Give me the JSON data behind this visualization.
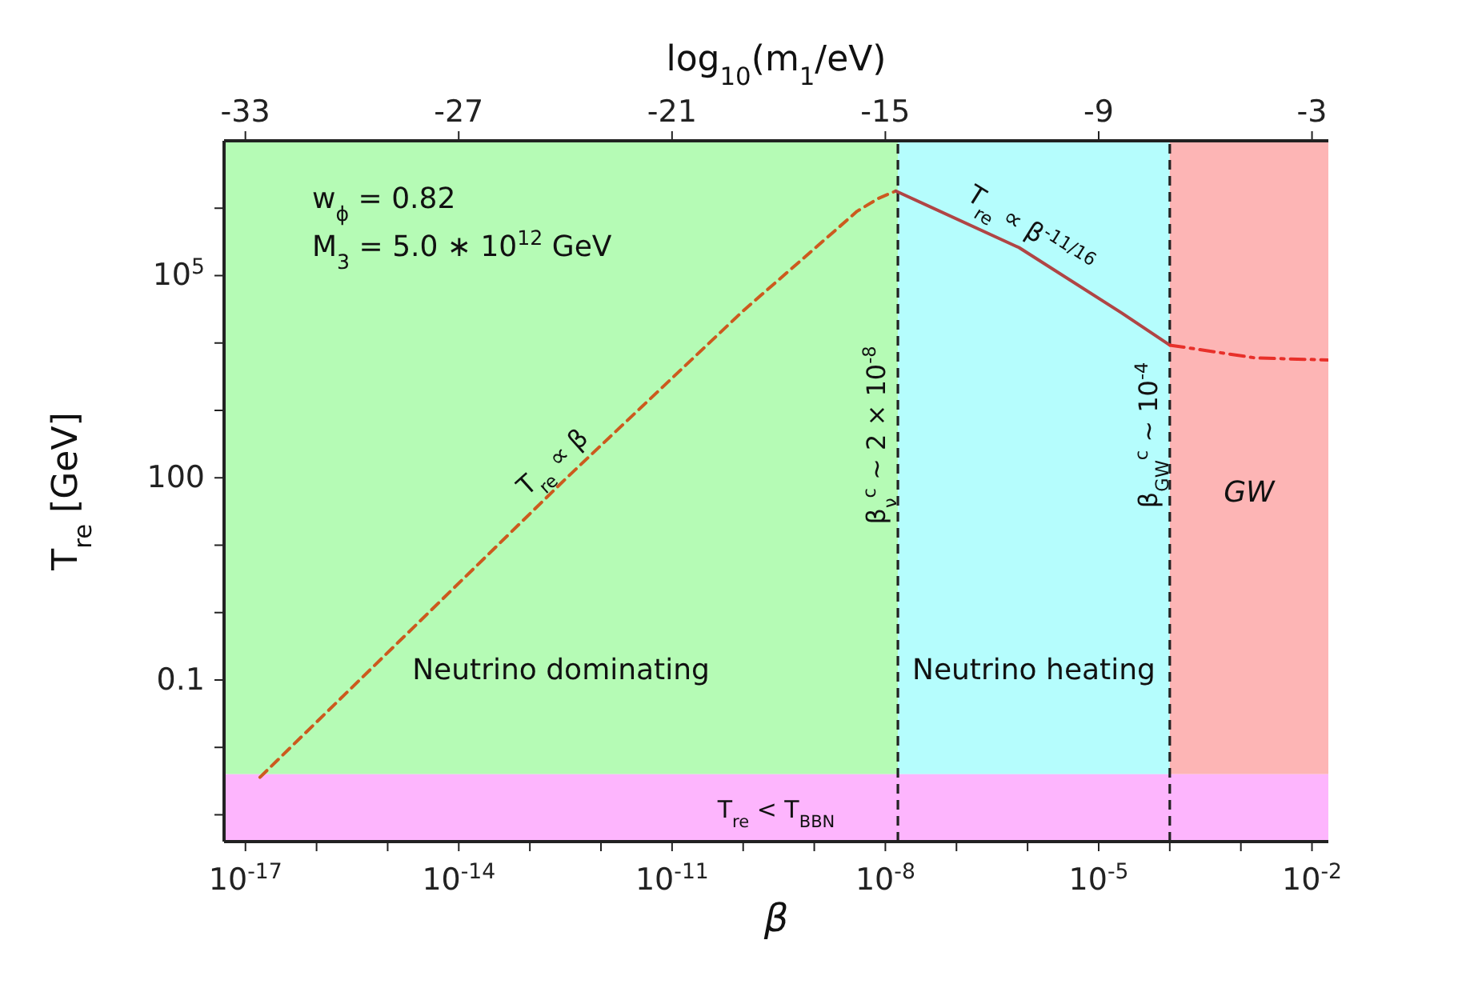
{
  "chart_data": {
    "type": "line",
    "xlabel": "β",
    "ylabel": "T$_{re}$ [GeV]",
    "x2label": "log$_{10}$(m$_{1}$/eV)",
    "log": "xy",
    "grid": false,
    "xlim": [
      5e-18,
      0.017
    ],
    "ylim": [
      0.0004,
      10000000
    ],
    "xticks": [
      {
        "value": 1e-17,
        "label": "10$^{-17}$"
      },
      {
        "value": 1e-16,
        "label": null
      },
      {
        "value": 1e-15,
        "label": null
      },
      {
        "value": 1e-14,
        "label": "10$^{-14}$"
      },
      {
        "value": 1e-13,
        "label": null
      },
      {
        "value": 1e-12,
        "label": null
      },
      {
        "value": 1e-11,
        "label": "10$^{-11}$"
      },
      {
        "value": 1e-10,
        "label": null
      },
      {
        "value": 1e-09,
        "label": null
      },
      {
        "value": 1e-08,
        "label": "10$^{-8}$"
      },
      {
        "value": 1e-07,
        "label": null
      },
      {
        "value": 1e-06,
        "label": null
      },
      {
        "value": 1e-05,
        "label": "10$^{-5}$"
      },
      {
        "value": 0.0001,
        "label": null
      },
      {
        "value": 0.001,
        "label": null
      },
      {
        "value": 0.01,
        "label": "10$^{-2}$"
      }
    ],
    "yticks": [
      {
        "value": 0.001,
        "label": null
      },
      {
        "value": 0.01,
        "label": null
      },
      0.1,
      {
        "value": 1,
        "label": null
      },
      {
        "value": 10,
        "label": null
      },
      100,
      {
        "value": 1000,
        "label": null
      },
      {
        "value": 10000,
        "label": null
      },
      {
        "value": 100000,
        "label": "10$^{5}$"
      },
      {
        "value": 1000000,
        "label": null
      }
    ],
    "x2lim": [
      -33.6,
      -2.54
    ],
    "x2ticks": [
      -33,
      -27,
      -21,
      -15,
      -9,
      -3
    ],
    "series": [
      {
        "color": "#cc5a1e",
        "line_style": "dashed",
        "x": [
          1.6e-17,
          3.3e-13,
          1e-10,
          1e-09,
          4e-09,
          8e-09,
          1.4e-08
        ],
        "values": [
          0.0036,
          100,
          30000,
          250000,
          900000,
          1400000,
          1800000
        ]
      },
      {
        "color": "#b04545",
        "line_style": "solid",
        "x": [
          1.4e-08,
          7.6e-07,
          2.1e-05,
          0.0001
        ],
        "values": [
          1800000,
          260000,
          28000,
          9300
        ]
      },
      {
        "color": "#e8302a",
        "line_style": "dashdot",
        "x": [
          0.0001,
          0.0016,
          0.017
        ],
        "values": [
          9300,
          6000,
          5600
        ]
      }
    ],
    "bands": [
      {
        "axis": "x",
        "from": 5e-18,
        "to": 1.5e-08,
        "label": "Neutrino dominating",
        "color": "#b5fbb5"
      },
      {
        "axis": "x",
        "from": 1.5e-08,
        "to": 0.0001,
        "label": "Neutrino heating",
        "color": "#b5fdfd"
      },
      {
        "axis": "x",
        "from": 0.0001,
        "to": 0.017,
        "label": "GW",
        "color": "#fdb5b5"
      },
      {
        "axis": "y",
        "from": 0.0004,
        "to": 0.004,
        "label": "T$_{re}$ < T$_{BBN}$",
        "color": "#fdb5fd"
      }
    ],
    "ref_lines": [
      {
        "axis": "x",
        "value": 1.5e-08,
        "label": "β$_{ν}$$^{c}$ ~ 2 × 10$^{-8}$",
        "line_style": "dashed",
        "color": "#222222"
      },
      {
        "axis": "x",
        "value": 0.0001,
        "label": "β$_{GW}$$^{c}$ ~ 10$^{-4}$",
        "line_style": "dashed",
        "color": "#222222"
      }
    ],
    "annotations": [
      "w$_{ϕ}$ = 0.82",
      "M$_{3}$ = 5.0 ∗ 10$^{12}$ GeV",
      {
        "text": "T$_{re}$ ∝ β",
        "x": 3.3e-13,
        "y": 100
      },
      {
        "text": "T$_{re}$ ∝ β$^{-11/16}$",
        "x": 7.6e-07,
        "y": 260000
      }
    ]
  }
}
